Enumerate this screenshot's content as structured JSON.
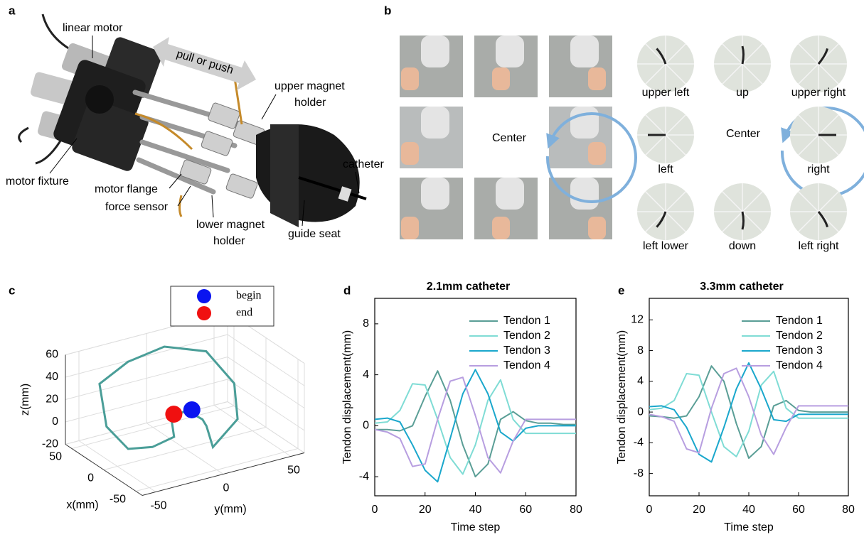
{
  "panel_a": {
    "label": "a",
    "callouts": [
      [
        "linear motor"
      ],
      [
        "pull or push"
      ],
      [
        "upper magnet",
        "holder"
      ],
      [
        "catheter"
      ],
      [
        "motor fixture"
      ],
      [
        "motor flange"
      ],
      [
        "force sensor"
      ],
      [
        "lower magnet",
        "holder"
      ],
      [
        "guide seat"
      ]
    ]
  },
  "panel_b": {
    "label": "b",
    "center_left": "Center",
    "center_right": "Center",
    "directions": [
      "upper left",
      "up",
      "upper right",
      "left",
      "right",
      "left lower",
      "down",
      "left right"
    ]
  },
  "chart_data": [
    {
      "type": "line3d",
      "panel_label": "c",
      "xlabel": "x(mm)",
      "ylabel": "y(mm)",
      "zlabel": "z(mm)",
      "xlim": [
        -60,
        60
      ],
      "ylim": [
        -60,
        60
      ],
      "zlim": [
        -20,
        60
      ],
      "xticks": [
        -50,
        0,
        50
      ],
      "yticks": [
        -50,
        0,
        50
      ],
      "zticks": [
        -20,
        0,
        20,
        40,
        60
      ],
      "grid": true,
      "series": [
        {
          "color": "#4a9e98",
          "x": [
            0,
            0,
            0,
            0,
            0,
            0,
            30,
            30,
            30,
            30,
            20,
            0,
            -10,
            0,
            0,
            0
          ],
          "y": [
            1,
            -10,
            -8,
            -24,
            -42,
            -58,
            -49,
            -28,
            -1,
            30,
            46,
            39,
            16,
            16,
            13,
            1
          ],
          "z": [
            14,
            10,
            -7,
            -11,
            -7,
            18,
            42,
            55,
            60,
            46,
            16,
            -6,
            -20,
            -5,
            2,
            14
          ]
        }
      ],
      "markers": [
        {
          "name": "begin",
          "color": "#0a14f0",
          "x": 0,
          "y": 2,
          "z": 14
        },
        {
          "name": "end",
          "color": "#f01010",
          "x": 0,
          "y": -4,
          "z": 12
        }
      ]
    },
    {
      "type": "line",
      "panel_label": "d",
      "title": "2.1mm catheter",
      "xlabel": "Time step",
      "ylabel": "Tendon displacement(mm)",
      "x": [
        0,
        5,
        10,
        15,
        20,
        25,
        30,
        35,
        40,
        45,
        50,
        55,
        60,
        65,
        70,
        75,
        80
      ],
      "xlim": [
        0,
        80
      ],
      "xticks": [
        0,
        20,
        40,
        60,
        80
      ],
      "ylim": [
        -5.5,
        10
      ],
      "yticks": [
        -4,
        0,
        4,
        8
      ],
      "legend": "upper right",
      "series": [
        {
          "name": "Tendon 1",
          "color": "#5a9e96",
          "values": [
            -0.3,
            -0.3,
            -0.4,
            0,
            2.3,
            4.3,
            2.0,
            -1.5,
            -4.0,
            -3.0,
            0.5,
            1.1,
            0.4,
            0.2,
            0.2,
            0.1,
            0.1
          ]
        },
        {
          "name": "Tendon 2",
          "color": "#7fdcd5",
          "values": [
            0.2,
            0.3,
            1.2,
            3.3,
            3.2,
            0.5,
            -2.5,
            -3.8,
            -1.5,
            2.0,
            3.6,
            0.5,
            -0.6,
            -0.6,
            -0.6,
            -0.6,
            -0.6
          ]
        },
        {
          "name": "Tendon 3",
          "color": "#1aa7cc",
          "values": [
            0.5,
            0.6,
            0.3,
            -1.5,
            -3.5,
            -4.4,
            -1,
            2.5,
            4.4,
            2.5,
            -0.5,
            -1.2,
            -0.2,
            0,
            0,
            0,
            0
          ]
        },
        {
          "name": "Tendon 4",
          "color": "#b79ee0",
          "values": [
            -0.3,
            -0.5,
            -1.0,
            -3.2,
            -3.0,
            0.5,
            3.5,
            3.8,
            0.8,
            -2.5,
            -3.7,
            -1.2,
            0.5,
            0.5,
            0.5,
            0.5,
            0.5
          ]
        }
      ]
    },
    {
      "type": "line",
      "panel_label": "e",
      "title": "3.3mm catheter",
      "xlabel": "Time step",
      "ylabel": "Tendon displacement(mm)",
      "x": [
        0,
        5,
        10,
        15,
        20,
        25,
        30,
        35,
        40,
        45,
        50,
        55,
        60,
        65,
        70,
        75,
        80
      ],
      "xlim": [
        0,
        80
      ],
      "xticks": [
        0,
        20,
        40,
        60,
        80
      ],
      "ylim": [
        -10.9,
        14.8
      ],
      "yticks": [
        -8,
        -4,
        0,
        4,
        8,
        12
      ],
      "legend": "upper right",
      "series": [
        {
          "name": "Tendon 1",
          "color": "#5a9e96",
          "values": [
            -0.5,
            -0.6,
            -0.8,
            -0.5,
            2,
            6,
            4,
            -1.5,
            -6,
            -4.5,
            0.8,
            1.5,
            0.2,
            0,
            0,
            0,
            0
          ]
        },
        {
          "name": "Tendon 2",
          "color": "#7fdcd5",
          "values": [
            0.3,
            0.5,
            1.5,
            5,
            4.8,
            0,
            -4.5,
            -5.8,
            -2.5,
            3.5,
            5.3,
            0.5,
            -0.8,
            -0.8,
            -0.8,
            -0.8,
            -0.8
          ]
        },
        {
          "name": "Tendon 3",
          "color": "#1aa7cc",
          "values": [
            0.7,
            0.8,
            0.3,
            -2,
            -5.5,
            -6.5,
            -2,
            3,
            6.4,
            3,
            -1,
            -1.2,
            -0.3,
            -0.3,
            -0.3,
            -0.3,
            -0.3
          ]
        },
        {
          "name": "Tendon 4",
          "color": "#b79ee0",
          "values": [
            -0.3,
            -0.6,
            -1.2,
            -4.8,
            -5.3,
            0.5,
            5,
            5.7,
            2,
            -3,
            -5.5,
            -2,
            0.8,
            0.8,
            0.8,
            0.8,
            0.8
          ]
        }
      ]
    }
  ]
}
